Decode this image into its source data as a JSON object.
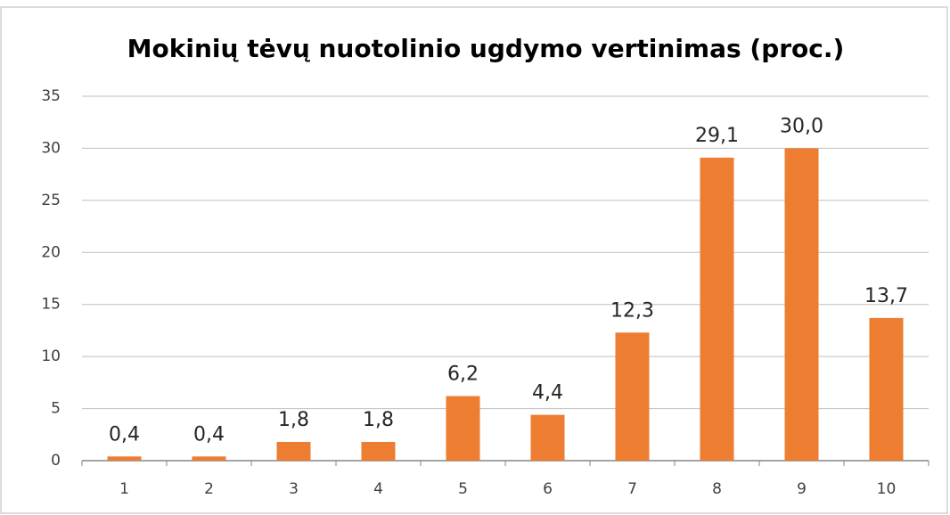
{
  "chart_data": {
    "type": "bar",
    "title": "Mokinių tėvų nuotolinio ugdymo vertinimas (proc.)",
    "categories": [
      "1",
      "2",
      "3",
      "4",
      "5",
      "6",
      "7",
      "8",
      "9",
      "10"
    ],
    "values": [
      0.4,
      0.4,
      1.8,
      1.8,
      6.2,
      4.4,
      12.3,
      29.1,
      30.0,
      13.7
    ],
    "value_labels": [
      "0,4",
      "0,4",
      "1,8",
      "1,8",
      "6,2",
      "4,4",
      "12,3",
      "29,1",
      "30,0",
      "13,7"
    ],
    "color": "#ed7d31",
    "ylim": [
      0,
      35
    ],
    "yticks": [
      0,
      5,
      10,
      15,
      20,
      25,
      30,
      35
    ],
    "grid": true
  }
}
